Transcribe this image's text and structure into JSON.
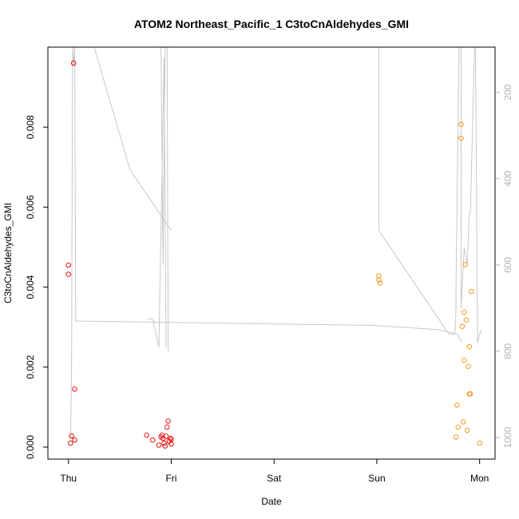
{
  "chart_data": {
    "type": "scatter",
    "title": "ATOM2 Northeast_Pacific_1 C3toCnAldehydes_GMI",
    "xlabel": "Date",
    "ylabel": "C3toCnAldehydes_GMI",
    "x_ticks": [
      "Thu",
      "Fri",
      "Sat",
      "Sun",
      "Mon"
    ],
    "y_ticks": [
      "0.000",
      "0.002",
      "0.004",
      "0.006",
      "0.008"
    ],
    "y_right_ticks": [
      "200",
      "400",
      "600",
      "800",
      "1000"
    ],
    "xlim": [
      -0.2,
      4.15
    ],
    "ylim": [
      -0.0003,
      0.01
    ],
    "y_right_lim": [
      1050,
      95
    ],
    "colors": {
      "red_series": "#ee1111",
      "orange_series": "#f59a1f",
      "profile": "#c8c8c8",
      "frame": "#000000"
    },
    "series": [
      {
        "color": "red",
        "points": [
          [
            0.0,
            0.00455
          ],
          [
            0.0,
            0.00432
          ],
          [
            0.05,
            0.0096
          ],
          [
            0.06,
            0.00145
          ],
          [
            0.03,
            0.00028
          ],
          [
            0.02,
            0.0001
          ],
          [
            0.06,
            0.00018
          ],
          [
            0.76,
            0.0003
          ],
          [
            0.82,
            0.00018
          ],
          [
            0.88,
            5e-05
          ],
          [
            0.9,
            0.00025
          ],
          [
            0.91,
            0.0003
          ],
          [
            0.92,
            0.00022
          ],
          [
            0.93,
            0.0001
          ],
          [
            0.94,
            3e-05
          ],
          [
            0.95,
            0.00027
          ],
          [
            0.96,
            0.0005
          ],
          [
            0.97,
            0.00065
          ],
          [
            0.98,
            0.00015
          ],
          [
            0.99,
            0.00022
          ],
          [
            1.0,
            8e-05
          ],
          [
            1.0,
            0.0002
          ]
        ]
      },
      {
        "color": "orange",
        "points": [
          [
            3.02,
            0.00428
          ],
          [
            3.02,
            0.00418
          ],
          [
            3.03,
            0.0041
          ],
          [
            3.77,
            0.00025
          ],
          [
            3.78,
            0.00105
          ],
          [
            3.79,
            0.0005
          ],
          [
            3.82,
            0.00807
          ],
          [
            3.82,
            0.00772
          ],
          [
            3.83,
            0.00302
          ],
          [
            3.84,
            0.00063
          ],
          [
            3.85,
            0.00337
          ],
          [
            3.85,
            0.00217
          ],
          [
            3.86,
            0.00456
          ],
          [
            3.87,
            0.00318
          ],
          [
            3.88,
            0.00042
          ],
          [
            3.89,
            0.00202
          ],
          [
            3.9,
            0.00251
          ],
          [
            3.9,
            0.00133
          ],
          [
            3.91,
            0.00133
          ],
          [
            3.92,
            0.00389
          ],
          [
            4.0,
            0.0001
          ]
        ]
      }
    ],
    "profile_axis": "right",
    "profile_segments": [
      [
        [
          0.02,
          1000
        ],
        [
          0.03,
          850
        ],
        [
          0.04,
          95
        ],
        [
          0.05,
          140
        ],
        [
          0.06,
          95
        ],
        [
          0.07,
          730
        ],
        [
          0.1,
          730
        ],
        [
          2.97,
          740
        ],
        [
          3.6,
          750
        ],
        [
          3.78,
          760
        ],
        [
          3.83,
          780
        ]
      ],
      [
        [
          0.13,
          95
        ],
        [
          0.25,
          95
        ],
        [
          0.6,
          380
        ],
        [
          1.0,
          520
        ]
      ],
      [
        [
          0.9,
          95
        ],
        [
          0.92,
          600
        ],
        [
          0.94,
          95
        ],
        [
          0.96,
          95
        ],
        [
          0.97,
          800
        ]
      ],
      [
        [
          0.77,
          725
        ],
        [
          0.82,
          725
        ],
        [
          0.88,
          790
        ],
        [
          0.93,
          120
        ],
        [
          0.95,
          790
        ]
      ],
      [
        [
          3.02,
          95
        ],
        [
          3.02,
          520
        ],
        [
          3.7,
          760
        ],
        [
          3.76,
          760
        ],
        [
          3.77,
          700
        ],
        [
          3.77,
          650
        ],
        [
          3.8,
          95
        ],
        [
          3.82,
          95
        ],
        [
          3.82,
          700
        ],
        [
          3.85,
          560
        ],
        [
          3.88,
          600
        ],
        [
          3.9,
          480
        ],
        [
          3.91,
          480
        ],
        [
          3.95,
          95
        ],
        [
          3.96,
          95
        ],
        [
          3.98,
          780
        ],
        [
          4.0,
          760
        ],
        [
          4.02,
          750
        ]
      ]
    ]
  }
}
